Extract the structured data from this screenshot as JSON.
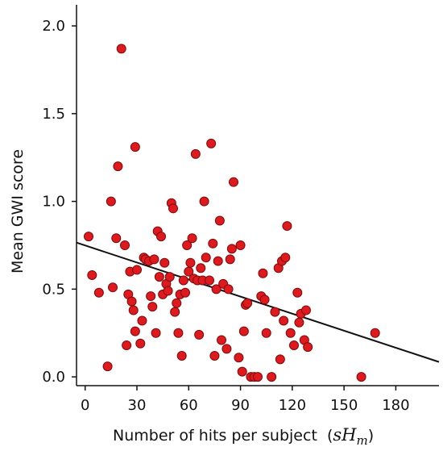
{
  "chart_data": {
    "type": "scatter",
    "title": "",
    "xlabel": "Number of hits per subject",
    "xlabel_symbol": "sH",
    "xlabel_subscript": "m",
    "ylabel": "Mean GWI score",
    "xlim": [
      -5,
      205
    ],
    "ylim": [
      -0.05,
      2.12
    ],
    "xticks": [
      "0",
      "30",
      "60",
      "90",
      "120",
      "150",
      "180"
    ],
    "xtick_values": [
      0,
      30,
      60,
      90,
      120,
      150,
      180
    ],
    "yticks": [
      "0.0",
      "0.5",
      "1.0",
      "1.5",
      "2.0"
    ],
    "ytick_values": [
      0.0,
      0.5,
      1.0,
      1.5,
      2.0
    ],
    "grid": false,
    "legend": "none",
    "marker_color": "#e0191e",
    "marker_edge": "#7a0c0c",
    "line_color": "#111111",
    "trend_line": {
      "x": [
        -5,
        205
      ],
      "y": [
        0.765,
        0.085
      ]
    },
    "points": [
      [
        2,
        0.8
      ],
      [
        4,
        0.58
      ],
      [
        8,
        0.48
      ],
      [
        13,
        0.06
      ],
      [
        15,
        1.0
      ],
      [
        16,
        0.51
      ],
      [
        18,
        0.79
      ],
      [
        19,
        1.2
      ],
      [
        21,
        1.87
      ],
      [
        23,
        0.75
      ],
      [
        24,
        0.18
      ],
      [
        25,
        0.47
      ],
      [
        26,
        0.6
      ],
      [
        27,
        0.43
      ],
      [
        28,
        0.38
      ],
      [
        29,
        0.26
      ],
      [
        29,
        1.31
      ],
      [
        30,
        0.61
      ],
      [
        32,
        0.19
      ],
      [
        33,
        0.32
      ],
      [
        34,
        0.68
      ],
      [
        35,
        0.67
      ],
      [
        37,
        0.66
      ],
      [
        38,
        0.46
      ],
      [
        39,
        0.4
      ],
      [
        40,
        0.67
      ],
      [
        41,
        0.25
      ],
      [
        42,
        0.83
      ],
      [
        43,
        0.57
      ],
      [
        44,
        0.8
      ],
      [
        45,
        0.47
      ],
      [
        46,
        0.65
      ],
      [
        47,
        0.53
      ],
      [
        48,
        0.49
      ],
      [
        49,
        0.57
      ],
      [
        50,
        0.99
      ],
      [
        51,
        0.96
      ],
      [
        52,
        0.37
      ],
      [
        53,
        0.42
      ],
      [
        54,
        0.25
      ],
      [
        55,
        0.47
      ],
      [
        56,
        0.12
      ],
      [
        57,
        0.55
      ],
      [
        58,
        0.48
      ],
      [
        59,
        0.75
      ],
      [
        60,
        0.6
      ],
      [
        61,
        0.65
      ],
      [
        62,
        0.79
      ],
      [
        63,
        0.56
      ],
      [
        64,
        1.27
      ],
      [
        65,
        0.55
      ],
      [
        66,
        0.24
      ],
      [
        67,
        0.62
      ],
      [
        68,
        0.55
      ],
      [
        69,
        1.0
      ],
      [
        70,
        0.68
      ],
      [
        72,
        0.55
      ],
      [
        73,
        1.33
      ],
      [
        74,
        0.76
      ],
      [
        75,
        0.12
      ],
      [
        76,
        0.5
      ],
      [
        77,
        0.66
      ],
      [
        78,
        0.89
      ],
      [
        79,
        0.21
      ],
      [
        80,
        0.53
      ],
      [
        82,
        0.16
      ],
      [
        83,
        0.5
      ],
      [
        84,
        0.67
      ],
      [
        85,
        0.73
      ],
      [
        86,
        1.11
      ],
      [
        89,
        0.11
      ],
      [
        90,
        0.75
      ],
      [
        91,
        0.03
      ],
      [
        92,
        0.26
      ],
      [
        93,
        0.41
      ],
      [
        94,
        0.42
      ],
      [
        96,
        0.0
      ],
      [
        98,
        0.0
      ],
      [
        100,
        0.0
      ],
      [
        102,
        0.46
      ],
      [
        103,
        0.59
      ],
      [
        104,
        0.44
      ],
      [
        105,
        0.25
      ],
      [
        108,
        0.0
      ],
      [
        110,
        0.37
      ],
      [
        112,
        0.62
      ],
      [
        113,
        0.1
      ],
      [
        114,
        0.66
      ],
      [
        115,
        0.32
      ],
      [
        116,
        0.68
      ],
      [
        117,
        0.86
      ],
      [
        119,
        0.25
      ],
      [
        121,
        0.18
      ],
      [
        123,
        0.48
      ],
      [
        124,
        0.31
      ],
      [
        125,
        0.36
      ],
      [
        127,
        0.21
      ],
      [
        128,
        0.38
      ],
      [
        129,
        0.17
      ],
      [
        160,
        0.0
      ],
      [
        168,
        0.25
      ]
    ]
  }
}
